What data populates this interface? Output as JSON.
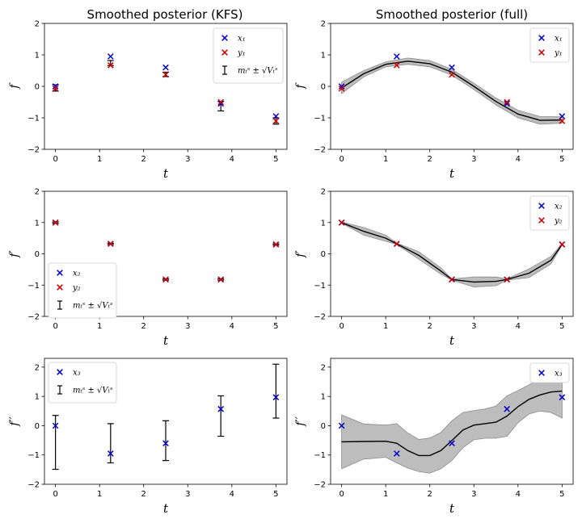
{
  "figure": {
    "titles": {
      "left": "Smoothed posterior (KFS)",
      "right": "Smoothed posterior (full)"
    },
    "xlabel": "t",
    "ylabels": [
      "f",
      "f′",
      "f′′"
    ]
  },
  "legend_labels": {
    "x1": "x₁",
    "y1": "y₁",
    "x2": "x₂",
    "y2": "y₂",
    "x3": "x₃",
    "errorbar": "mₜˢ ± √Vₜˢ"
  },
  "colors": {
    "x_marker": "#0000cc",
    "y_marker": "#cc0000",
    "band": "#bdbdbd",
    "mean": "#000000"
  },
  "chart_data": [
    {
      "id": "kfs-f",
      "type": "scatter",
      "title": "Smoothed posterior (KFS)",
      "xlabel": "t",
      "ylabel": "f",
      "xlim": [
        -0.25,
        5.25
      ],
      "ylim": [
        -2,
        2
      ],
      "xticks": [
        0,
        1,
        2,
        3,
        4,
        5
      ],
      "yticks": [
        -2,
        -1,
        0,
        1,
        2
      ],
      "x": [
        0,
        1.25,
        2.5,
        3.75,
        5
      ],
      "series": [
        {
          "name": "x₁",
          "marker": "x",
          "color": "#0000cc",
          "values": [
            0.0,
            0.95,
            0.6,
            -0.55,
            -0.95
          ]
        },
        {
          "name": "y₁",
          "marker": "x",
          "color": "#cc0000",
          "values": [
            -0.07,
            0.67,
            0.37,
            -0.5,
            -1.1
          ]
        }
      ],
      "errorbars": {
        "name": "mₜˢ ± √Vₜˢ",
        "mean": [
          -0.05,
          0.74,
          0.38,
          -0.63,
          -1.1
        ],
        "sd": [
          0.1,
          0.08,
          0.07,
          0.15,
          0.1
        ]
      },
      "legend": "upper right"
    },
    {
      "id": "full-f",
      "type": "line",
      "title": "Smoothed posterior (full)",
      "xlabel": "t",
      "ylabel": "f",
      "xlim": [
        -0.25,
        5.25
      ],
      "ylim": [
        -2,
        2
      ],
      "xticks": [
        0,
        1,
        2,
        3,
        4,
        5
      ],
      "yticks": [
        -2,
        -1,
        0,
        1,
        2
      ],
      "x": [
        0,
        1.25,
        2.5,
        3.75,
        5
      ],
      "series": [
        {
          "name": "x₁",
          "marker": "x",
          "color": "#0000cc",
          "values": [
            0.0,
            0.95,
            0.6,
            -0.55,
            -0.95
          ]
        },
        {
          "name": "y₁",
          "marker": "x",
          "color": "#cc0000",
          "values": [
            -0.07,
            0.67,
            0.37,
            -0.5,
            -1.1
          ]
        }
      ],
      "mean_curve": {
        "x": [
          0,
          0.5,
          1,
          1.5,
          2,
          2.5,
          3,
          3.5,
          4,
          4.5,
          5
        ],
        "y": [
          -0.05,
          0.4,
          0.7,
          0.8,
          0.72,
          0.45,
          0.0,
          -0.48,
          -0.88,
          -1.08,
          -1.07
        ],
        "band_sd": [
          0.18,
          0.1,
          0.08,
          0.1,
          0.1,
          0.09,
          0.1,
          0.11,
          0.12,
          0.12,
          0.1
        ]
      },
      "legend": "upper right"
    },
    {
      "id": "kfs-df",
      "type": "scatter",
      "xlabel": "t",
      "ylabel": "f′",
      "xlim": [
        -0.25,
        5.25
      ],
      "ylim": [
        -2,
        2
      ],
      "xticks": [
        0,
        1,
        2,
        3,
        4,
        5
      ],
      "yticks": [
        -2,
        -1,
        0,
        1,
        2
      ],
      "x": [
        0,
        1.25,
        2.5,
        3.75,
        5
      ],
      "series": [
        {
          "name": "x₂",
          "marker": "x",
          "color": "#0000cc",
          "values": [
            1.0,
            0.32,
            -0.82,
            -0.82,
            0.3
          ]
        },
        {
          "name": "y₂",
          "marker": "x",
          "color": "#cc0000",
          "values": [
            1.0,
            0.32,
            -0.82,
            -0.82,
            0.3
          ]
        }
      ],
      "errorbars": {
        "name": "mₜˢ ± √Vₜˢ",
        "mean": [
          1.0,
          0.32,
          -0.82,
          -0.82,
          0.3
        ],
        "sd": [
          0.02,
          0.02,
          0.02,
          0.02,
          0.02
        ]
      },
      "legend": "lower left"
    },
    {
      "id": "full-df",
      "type": "line",
      "xlabel": "t",
      "ylabel": "f′",
      "xlim": [
        -0.25,
        5.25
      ],
      "ylim": [
        -2,
        2
      ],
      "xticks": [
        0,
        1,
        2,
        3,
        4,
        5
      ],
      "yticks": [
        -2,
        -1,
        0,
        1,
        2
      ],
      "x": [
        0,
        1.25,
        2.5,
        3.75,
        5
      ],
      "series": [
        {
          "name": "x₂",
          "marker": "x",
          "color": "#0000cc",
          "values": [
            1.0,
            0.32,
            -0.82,
            -0.82,
            0.3
          ]
        },
        {
          "name": "y₂",
          "marker": "x",
          "color": "#cc0000",
          "values": [
            1.0,
            0.32,
            -0.82,
            -0.82,
            0.3
          ]
        }
      ],
      "mean_curve": {
        "x": [
          0,
          0.5,
          1,
          1.25,
          1.75,
          2.25,
          2.5,
          3,
          3.5,
          3.75,
          4.25,
          4.75,
          5
        ],
        "y": [
          1.0,
          0.72,
          0.5,
          0.32,
          -0.05,
          -0.55,
          -0.82,
          -0.9,
          -0.88,
          -0.82,
          -0.62,
          -0.2,
          0.3
        ],
        "band_sd": [
          0.02,
          0.12,
          0.1,
          0.02,
          0.12,
          0.1,
          0.02,
          0.16,
          0.14,
          0.02,
          0.14,
          0.12,
          0.02
        ]
      },
      "legend": "upper right"
    },
    {
      "id": "kfs-ddf",
      "type": "scatter",
      "xlabel": "t",
      "ylabel": "f′′",
      "xlim": [
        -0.25,
        5.25
      ],
      "ylim": [
        -2,
        2.3
      ],
      "xticks": [
        0,
        1,
        2,
        3,
        4,
        5
      ],
      "yticks": [
        -2,
        -1,
        0,
        1,
        2
      ],
      "x": [
        0,
        1.25,
        2.5,
        3.75,
        5
      ],
      "series": [
        {
          "name": "x₃",
          "marker": "x",
          "color": "#0000cc",
          "values": [
            0.0,
            -0.95,
            -0.6,
            0.57,
            0.97
          ]
        }
      ],
      "errorbars": {
        "name": "mₜˢ ± √Vₜˢ",
        "mean": [
          -0.57,
          -0.6,
          -0.51,
          0.33,
          1.18
        ],
        "sd": [
          0.92,
          0.67,
          0.68,
          0.69,
          0.92
        ]
      },
      "legend": "upper left"
    },
    {
      "id": "full-ddf",
      "type": "line",
      "xlabel": "t",
      "ylabel": "f′′",
      "xlim": [
        -0.25,
        5.25
      ],
      "ylim": [
        -2,
        2.3
      ],
      "xticks": [
        0,
        1,
        2,
        3,
        4,
        5
      ],
      "yticks": [
        -2,
        -1,
        0,
        1,
        2
      ],
      "x": [
        0,
        1.25,
        2.5,
        3.75,
        5
      ],
      "series": [
        {
          "name": "x₃",
          "marker": "x",
          "color": "#0000cc",
          "values": [
            0.0,
            -0.95,
            -0.6,
            0.57,
            0.97
          ]
        }
      ],
      "mean_curve": {
        "x": [
          0,
          0.5,
          1,
          1.25,
          1.5,
          1.75,
          2,
          2.25,
          2.5,
          2.75,
          3,
          3.25,
          3.5,
          3.75,
          4,
          4.25,
          4.5,
          4.75,
          5
        ],
        "y": [
          -0.55,
          -0.54,
          -0.53,
          -0.6,
          -0.85,
          -1.02,
          -1.02,
          -0.85,
          -0.51,
          -0.15,
          0.02,
          0.07,
          0.12,
          0.33,
          0.65,
          0.9,
          1.05,
          1.15,
          1.18
        ],
        "band_sd": [
          0.92,
          0.6,
          0.55,
          0.67,
          0.6,
          0.55,
          0.6,
          0.62,
          0.68,
          0.6,
          0.5,
          0.5,
          0.55,
          0.69,
          0.55,
          0.5,
          0.55,
          0.7,
          0.92
        ]
      },
      "legend": "upper right"
    }
  ]
}
